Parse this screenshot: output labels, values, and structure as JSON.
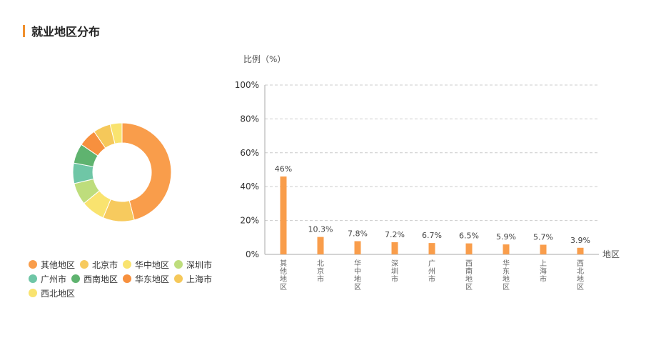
{
  "header": {
    "title": "就业地区分布"
  },
  "colors": {
    "accent": "#f0902e",
    "bar": "#f99d4b",
    "grid": "#cccccc",
    "axis": "#aaaaaa",
    "text": "#555555"
  },
  "chart_data": [
    {
      "type": "pie",
      "donut": true,
      "legend": "bottom",
      "labels": [
        "其他地区",
        "北京市",
        "华中地区",
        "深圳市",
        "广州市",
        "西南地区",
        "华东地区",
        "上海市",
        "西北地区"
      ],
      "values": [
        46,
        10.3,
        7.8,
        7.2,
        6.7,
        6.5,
        5.9,
        5.7,
        3.9
      ],
      "colors": [
        "#f99d4b",
        "#f7ca5e",
        "#f9e36f",
        "#bedd7c",
        "#6fc6a6",
        "#5fb36f",
        "#f7903e",
        "#f5c85a",
        "#f9e36f"
      ]
    },
    {
      "type": "bar",
      "ylabel": "比例（%）",
      "xlabel": "地区",
      "ylim": [
        0,
        100
      ],
      "yticks": [
        0,
        20,
        40,
        60,
        80,
        100
      ],
      "ytick_labels": [
        "0%",
        "20%",
        "40%",
        "60%",
        "80%",
        "100%"
      ],
      "grid": true,
      "categories": [
        "其他地区",
        "北京市",
        "华中地区",
        "深圳市",
        "广州市",
        "西南地区",
        "华东地区",
        "上海市",
        "西北地区"
      ],
      "values": [
        46,
        10.3,
        7.8,
        7.2,
        6.7,
        6.5,
        5.9,
        5.7,
        3.9
      ],
      "value_labels": [
        "46%",
        "10.3%",
        "7.8%",
        "7.2%",
        "6.7%",
        "6.5%",
        "5.9%",
        "5.7%",
        "3.9%"
      ]
    }
  ]
}
